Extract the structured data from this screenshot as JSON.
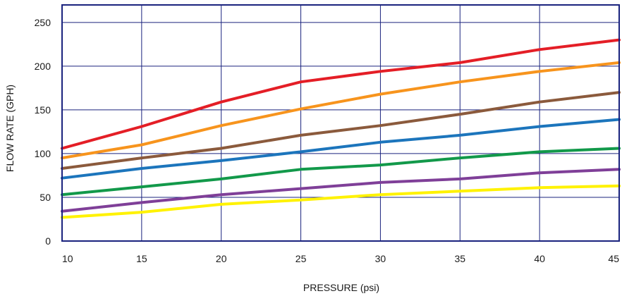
{
  "chart_data": {
    "type": "line",
    "xlabel": "PRESSURE (psi)",
    "ylabel": "FLOW RATE (GPH)",
    "xlim": [
      10,
      45
    ],
    "ylim": [
      0,
      270
    ],
    "xticks": [
      10,
      15,
      20,
      25,
      30,
      35,
      40,
      45
    ],
    "yticks": [
      0,
      50,
      100,
      150,
      200,
      250
    ],
    "grid": true,
    "frame_color": "#1a237e",
    "series": [
      {
        "color": "#e41e26",
        "x": [
          10,
          15,
          20,
          25,
          30,
          35,
          40,
          45
        ],
        "y": [
          106,
          131,
          159,
          182,
          194,
          204,
          219,
          230
        ]
      },
      {
        "color": "#f7941d",
        "x": [
          10,
          15,
          20,
          25,
          30,
          35,
          40,
          45
        ],
        "y": [
          95,
          110,
          132,
          151,
          168,
          182,
          194,
          204
        ]
      },
      {
        "color": "#8b5a3c",
        "x": [
          10,
          15,
          20,
          25,
          30,
          35,
          40,
          45
        ],
        "y": [
          83,
          95,
          106,
          121,
          132,
          145,
          159,
          170
        ]
      },
      {
        "color": "#1c75bc",
        "x": [
          10,
          15,
          20,
          25,
          30,
          35,
          40,
          45
        ],
        "y": [
          72,
          83,
          92,
          102,
          113,
          121,
          131,
          139
        ]
      },
      {
        "color": "#12994a",
        "x": [
          10,
          15,
          20,
          25,
          30,
          35,
          40,
          45
        ],
        "y": [
          53,
          62,
          71,
          82,
          87,
          95,
          102,
          106
        ]
      },
      {
        "color": "#7f3f98",
        "x": [
          10,
          15,
          20,
          25,
          30,
          35,
          40,
          45
        ],
        "y": [
          34,
          44,
          53,
          60,
          67,
          71,
          78,
          82
        ]
      },
      {
        "color": "#fff200",
        "x": [
          10,
          15,
          20,
          25,
          30,
          35,
          40,
          45
        ],
        "y": [
          27,
          33,
          42,
          47,
          53,
          57,
          61,
          63
        ]
      }
    ]
  }
}
